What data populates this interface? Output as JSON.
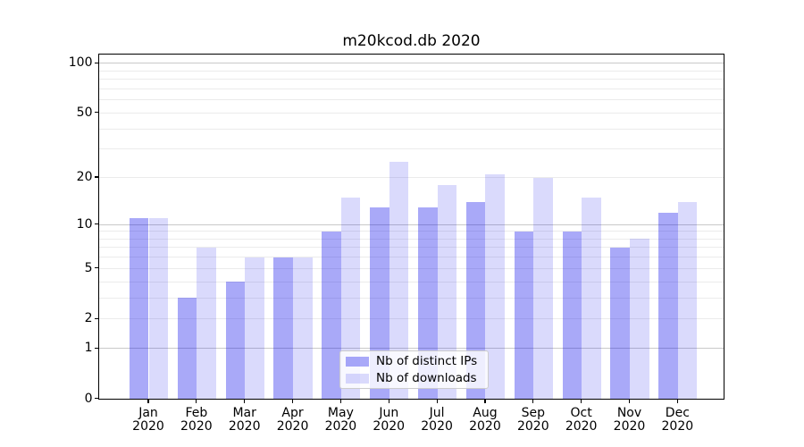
{
  "title": "m20kcod.db 2020",
  "chart_data": {
    "type": "bar",
    "title": "m20kcod.db 2020",
    "categories": [
      "Jan",
      "Feb",
      "Mar",
      "Apr",
      "May",
      "Jun",
      "Jul",
      "Aug",
      "Sep",
      "Oct",
      "Nov",
      "Dec"
    ],
    "year": "2020",
    "series": [
      {
        "name": "Nb of distinct IPs",
        "color": "rgba(10,10,235,0.35)",
        "color_hex_on_white": "#a6a6f7",
        "values": [
          11,
          3,
          4,
          6,
          9,
          13,
          13,
          14,
          9,
          9,
          7,
          12
        ]
      },
      {
        "name": "Nb of downloads",
        "color": "rgba(10,10,235,0.15)",
        "color_hex_on_white": "#d9d9fb",
        "values": [
          11,
          7,
          6,
          6,
          15,
          25,
          18,
          21,
          20,
          15,
          8,
          14
        ]
      }
    ],
    "yscale": "log1p",
    "ylim": [
      0,
      113
    ],
    "ytick_labels": [
      100,
      50,
      20,
      10,
      5,
      2,
      1,
      0
    ],
    "major_gridlines": [
      1,
      10,
      100
    ],
    "minor_gridlines": [
      2,
      3,
      4,
      5,
      6,
      7,
      8,
      9,
      20,
      30,
      40,
      50,
      60,
      70,
      80,
      90
    ],
    "grid": true,
    "legend_position": "lower center",
    "colors": {
      "major_grid": "#c9c9c9",
      "minor_grid": "#ebebeb",
      "axis": "#000000"
    }
  }
}
